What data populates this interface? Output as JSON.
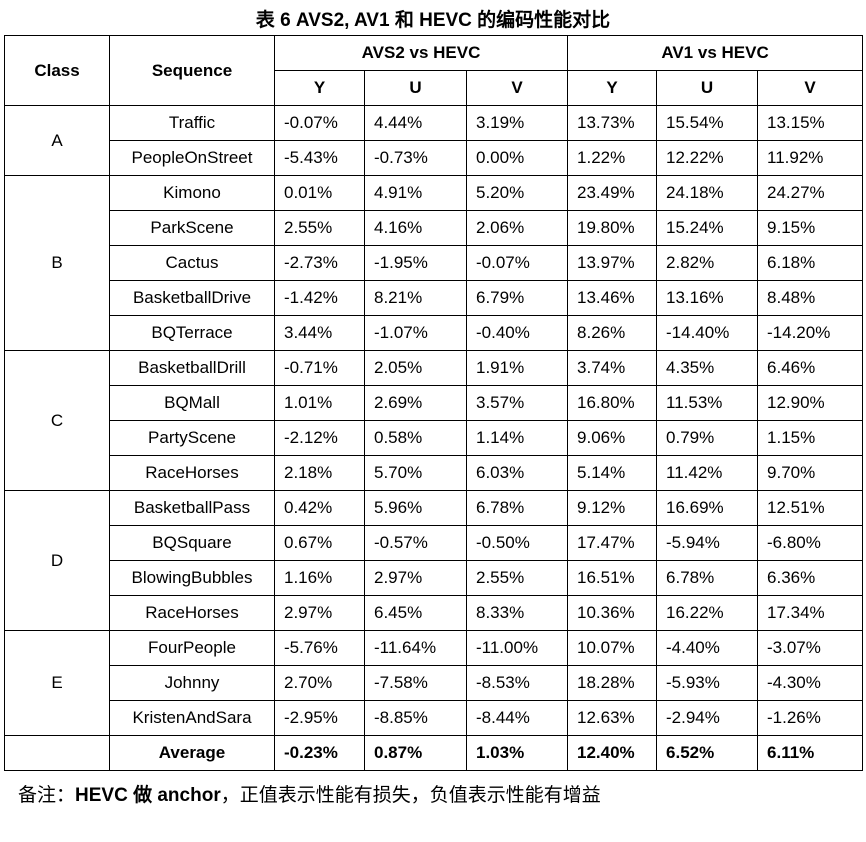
{
  "title": "表 6 AVS2, AV1 和 HEVC 的编码性能对比",
  "headers": {
    "class": "Class",
    "sequence": "Sequence",
    "group1": "AVS2 vs HEVC",
    "group2": "AV1 vs HEVC",
    "sub": [
      "Y",
      "U",
      "V",
      "Y",
      "U",
      "V"
    ]
  },
  "groups": [
    {
      "class": "A",
      "rows": [
        {
          "seq": "Traffic",
          "vals": [
            "-0.07%",
            "4.44%",
            "3.19%",
            "13.73%",
            "15.54%",
            "13.15%"
          ]
        },
        {
          "seq": "PeopleOnStreet",
          "vals": [
            "-5.43%",
            "-0.73%",
            "0.00%",
            "1.22%",
            "12.22%",
            "11.92%"
          ]
        }
      ]
    },
    {
      "class": "B",
      "rows": [
        {
          "seq": "Kimono",
          "vals": [
            "0.01%",
            "4.91%",
            "5.20%",
            "23.49%",
            "24.18%",
            "24.27%"
          ]
        },
        {
          "seq": "ParkScene",
          "vals": [
            "2.55%",
            "4.16%",
            "2.06%",
            "19.80%",
            "15.24%",
            "9.15%"
          ]
        },
        {
          "seq": "Cactus",
          "vals": [
            "-2.73%",
            "-1.95%",
            "-0.07%",
            "13.97%",
            "2.82%",
            "6.18%"
          ]
        },
        {
          "seq": "BasketballDrive",
          "vals": [
            "-1.42%",
            "8.21%",
            "6.79%",
            "13.46%",
            "13.16%",
            "8.48%"
          ]
        },
        {
          "seq": "BQTerrace",
          "vals": [
            "3.44%",
            "-1.07%",
            "-0.40%",
            "8.26%",
            "-14.40%",
            "-14.20%"
          ]
        }
      ]
    },
    {
      "class": "C",
      "rows": [
        {
          "seq": "BasketballDrill",
          "vals": [
            "-0.71%",
            "2.05%",
            "1.91%",
            "3.74%",
            "4.35%",
            "6.46%"
          ]
        },
        {
          "seq": "BQMall",
          "vals": [
            "1.01%",
            "2.69%",
            "3.57%",
            "16.80%",
            "11.53%",
            "12.90%"
          ]
        },
        {
          "seq": "PartyScene",
          "vals": [
            "-2.12%",
            "0.58%",
            "1.14%",
            "9.06%",
            "0.79%",
            "1.15%"
          ]
        },
        {
          "seq": "RaceHorses",
          "vals": [
            "2.18%",
            "5.70%",
            "6.03%",
            "5.14%",
            "11.42%",
            "9.70%"
          ]
        }
      ]
    },
    {
      "class": "D",
      "rows": [
        {
          "seq": "BasketballPass",
          "vals": [
            "0.42%",
            "5.96%",
            "6.78%",
            "9.12%",
            "16.69%",
            "12.51%"
          ]
        },
        {
          "seq": "BQSquare",
          "vals": [
            "0.67%",
            "-0.57%",
            "-0.50%",
            "17.47%",
            "-5.94%",
            "-6.80%"
          ]
        },
        {
          "seq": "BlowingBubbles",
          "vals": [
            "1.16%",
            "2.97%",
            "2.55%",
            "16.51%",
            "6.78%",
            "6.36%"
          ]
        },
        {
          "seq": "RaceHorses",
          "vals": [
            "2.97%",
            "6.45%",
            "8.33%",
            "10.36%",
            "16.22%",
            "17.34%"
          ]
        }
      ]
    },
    {
      "class": "E",
      "rows": [
        {
          "seq": "FourPeople",
          "vals": [
            "-5.76%",
            "-11.64%",
            "-11.00%",
            "10.07%",
            "-4.40%",
            "-3.07%"
          ]
        },
        {
          "seq": "Johnny",
          "vals": [
            "2.70%",
            "-7.58%",
            "-8.53%",
            "18.28%",
            "-5.93%",
            "-4.30%"
          ]
        },
        {
          "seq": "KristenAndSara",
          "vals": [
            "-2.95%",
            "-8.85%",
            "-8.44%",
            "12.63%",
            "-2.94%",
            "-1.26%"
          ]
        }
      ]
    }
  ],
  "average": {
    "label": "Average",
    "vals": [
      "-0.23%",
      "0.87%",
      "1.03%",
      "12.40%",
      "6.52%",
      "6.11%"
    ]
  },
  "note": {
    "prefix": "备注：",
    "bold": "HEVC 做 anchor",
    "rest": "，正值表示性能有损失，负值表示性能有增益"
  }
}
